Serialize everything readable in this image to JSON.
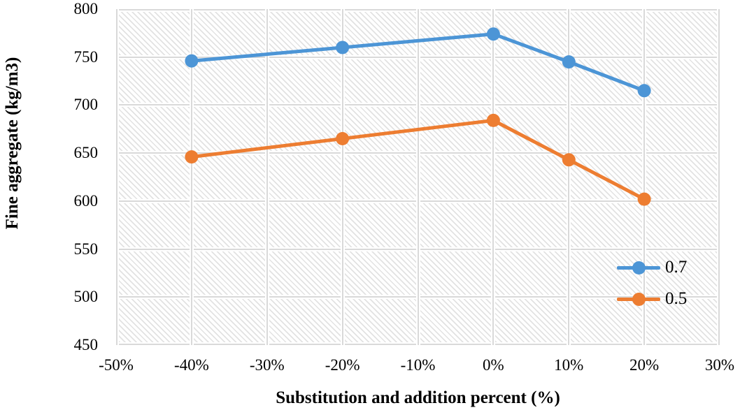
{
  "chart_data": {
    "type": "line",
    "title": "",
    "xlabel": "Substitution and addition percent (%)",
    "ylabel": "Fine aggregate (kg/m3)",
    "xlim": [
      -50,
      30
    ],
    "ylim": [
      450,
      800
    ],
    "x_ticks": [
      {
        "value": -50,
        "label": "-50%"
      },
      {
        "value": -40,
        "label": "-40%"
      },
      {
        "value": -30,
        "label": "-30%"
      },
      {
        "value": -20,
        "label": "-20%"
      },
      {
        "value": -10,
        "label": "-10%"
      },
      {
        "value": 0,
        "label": "0%"
      },
      {
        "value": 10,
        "label": "10%"
      },
      {
        "value": 20,
        "label": "20%"
      },
      {
        "value": 30,
        "label": "30%"
      }
    ],
    "y_ticks": [
      {
        "value": 450,
        "label": "450"
      },
      {
        "value": 500,
        "label": "500"
      },
      {
        "value": 550,
        "label": "550"
      },
      {
        "value": 600,
        "label": "600"
      },
      {
        "value": 650,
        "label": "650"
      },
      {
        "value": 700,
        "label": "700"
      },
      {
        "value": 750,
        "label": "750"
      },
      {
        "value": 800,
        "label": "800"
      }
    ],
    "grid": true,
    "plot_background": "light-diagonal-hatch",
    "legend_position": "inside-lower-right",
    "x": [
      -40,
      -20,
      0,
      10,
      20
    ],
    "series": [
      {
        "name": "0.7",
        "color": "#4c95d6",
        "values": [
          746,
          760,
          774,
          745,
          715
        ]
      },
      {
        "name": "0.5",
        "color": "#ed7d31",
        "values": [
          646,
          665,
          684,
          643,
          602
        ]
      }
    ]
  },
  "colors": {
    "gridline": "#d9d9d9",
    "hatch": "#e2e2e2",
    "text": "#000000",
    "background": "#ffffff"
  }
}
